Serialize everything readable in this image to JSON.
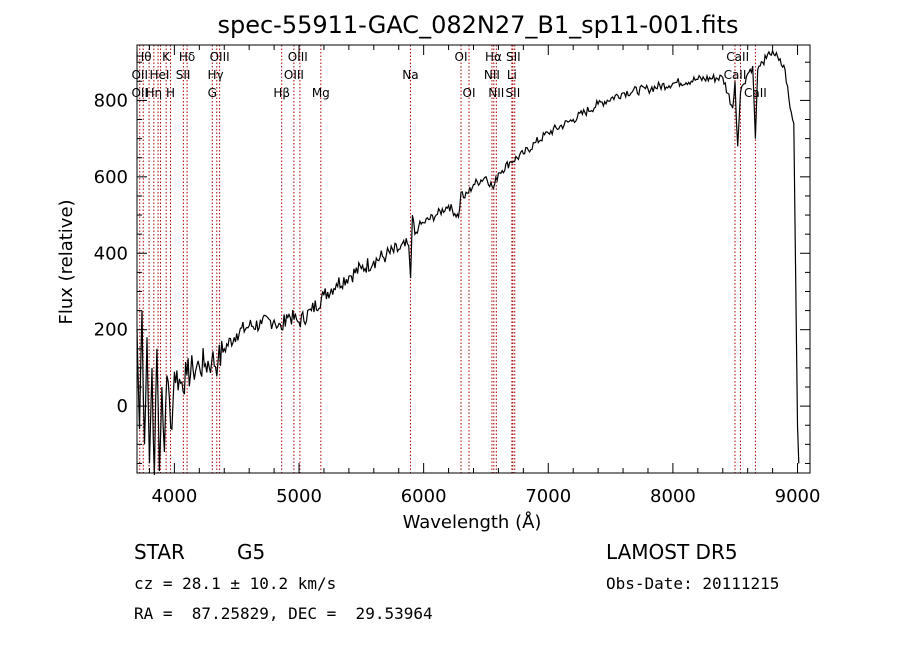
{
  "chart_data": {
    "type": "line",
    "title": "spec-55911-GAC_082N27_B1_sp11-001.fits",
    "xlabel": "Wavelength (Å)",
    "ylabel": "Flux (relative)",
    "xlim": [
      3700,
      9100
    ],
    "ylim": [
      -175,
      945
    ],
    "xticks": [
      4000,
      5000,
      6000,
      7000,
      8000,
      9000
    ],
    "yticks": [
      0,
      200,
      400,
      600,
      800
    ],
    "grid": false,
    "line_color": "#000000",
    "marker_color": "#aa0000",
    "series": [
      {
        "x": [
          3700,
          3720,
          3740,
          3760,
          3780,
          3800,
          3820,
          3840,
          3860,
          3880,
          3900,
          3920,
          3940,
          3960,
          3980,
          4000,
          4050,
          4100,
          4150,
          4200,
          4250,
          4300,
          4350,
          4400,
          4500,
          4600,
          4700,
          4800,
          4860,
          4900,
          5000,
          5100,
          5200,
          5300,
          5400,
          5500,
          5600,
          5700,
          5800,
          5880,
          5895,
          5910,
          5930,
          5960,
          6000,
          6100,
          6200,
          6280,
          6300,
          6330,
          6400,
          6500,
          6560,
          6600,
          6700,
          6800,
          6900,
          7000,
          7200,
          7400,
          7600,
          7800,
          8000,
          8200,
          8400,
          8480,
          8498,
          8520,
          8542,
          8560,
          8600,
          8640,
          8662,
          8680,
          8700,
          8720,
          8750,
          8780,
          8800,
          8850,
          8900,
          8940,
          8970,
          9000,
          9010
        ],
        "y": [
          200,
          -60,
          250,
          -100,
          180,
          -150,
          100,
          -180,
          150,
          -170,
          50,
          -120,
          80,
          20,
          -60,
          90,
          60,
          80,
          95,
          105,
          110,
          120,
          115,
          150,
          190,
          210,
          215,
          225,
          200,
          240,
          220,
          250,
          290,
          320,
          340,
          360,
          380,
          395,
          410,
          420,
          335,
          500,
          450,
          470,
          480,
          500,
          525,
          495,
          560,
          545,
          580,
          600,
          570,
          610,
          640,
          660,
          690,
          715,
          750,
          790,
          820,
          830,
          845,
          855,
          860,
          780,
          850,
          680,
          820,
          840,
          870,
          890,
          700,
          880,
          890,
          900,
          910,
          920,
          930,
          905,
          880,
          780,
          740,
          -50,
          -150
        ]
      }
    ],
    "lines": [
      {
        "wavelength": 3722,
        "labels": [
          "OII"
        ]
      },
      {
        "wavelength": 3750,
        "labels": [
          "Hθ"
        ]
      },
      {
        "wavelength": 3797,
        "labels": [
          "Hθ"
        ]
      },
      {
        "wavelength": 3835,
        "labels": [
          "Hη"
        ]
      },
      {
        "wavelength": 3869,
        "labels": [
          "HeI"
        ]
      },
      {
        "wavelength": 3889,
        "labels": [
          "HeI"
        ]
      },
      {
        "wavelength": 3934,
        "labels": [
          "K"
        ]
      },
      {
        "wavelength": 3969,
        "labels": [
          "H"
        ]
      },
      {
        "wavelength": 4072,
        "labels": [
          "SII"
        ]
      },
      {
        "wavelength": 4102,
        "labels": [
          "Hδ"
        ]
      },
      {
        "wavelength": 4304,
        "labels": [
          "G"
        ]
      },
      {
        "wavelength": 4340,
        "labels": [
          "Hγ"
        ]
      },
      {
        "wavelength": 4363,
        "labels": [
          "OIII"
        ]
      },
      {
        "wavelength": 4861,
        "labels": [
          "Hβ"
        ]
      },
      {
        "wavelength": 4959,
        "labels": [
          "OIII"
        ]
      },
      {
        "wavelength": 5007,
        "labels": [
          "OIII"
        ]
      },
      {
        "wavelength": 5175,
        "labels": [
          "Mg"
        ]
      },
      {
        "wavelength": 5894,
        "labels": [
          "Na"
        ]
      },
      {
        "wavelength": 6300,
        "labels": [
          "OI"
        ]
      },
      {
        "wavelength": 6364,
        "labels": [
          "OI"
        ]
      },
      {
        "wavelength": 6548,
        "labels": [
          "NII"
        ]
      },
      {
        "wavelength": 6563,
        "labels": [
          "Hα"
        ]
      },
      {
        "wavelength": 6583,
        "labels": [
          "NII"
        ]
      },
      {
        "wavelength": 6708,
        "labels": [
          "Li"
        ]
      },
      {
        "wavelength": 6716,
        "labels": [
          "SII"
        ]
      },
      {
        "wavelength": 6731,
        "labels": [
          "SII"
        ]
      },
      {
        "wavelength": 8498,
        "labels": [
          "CaII"
        ]
      },
      {
        "wavelength": 8542,
        "labels": [
          "CaII"
        ]
      },
      {
        "wavelength": 8662,
        "labels": [
          "CaII"
        ]
      }
    ],
    "line_labels": [
      {
        "text": "Hθ",
        "wl": 3752,
        "row": 0
      },
      {
        "text": "K",
        "wl": 3933,
        "row": 0
      },
      {
        "text": "Hδ",
        "wl": 4102,
        "row": 0
      },
      {
        "text": "OIII",
        "wl": 4363,
        "row": 0
      },
      {
        "text": "OIII",
        "wl": 4990,
        "row": 0
      },
      {
        "text": "OI",
        "wl": 6300,
        "row": 0
      },
      {
        "text": "Hα",
        "wl": 6560,
        "row": 0
      },
      {
        "text": "SII",
        "wl": 6720,
        "row": 0
      },
      {
        "text": "CaII",
        "wl": 8520,
        "row": 0
      },
      {
        "text": "OII",
        "wl": 3722,
        "row": 1
      },
      {
        "text": "HeI",
        "wl": 3880,
        "row": 1
      },
      {
        "text": "SII",
        "wl": 4070,
        "row": 1
      },
      {
        "text": "Hγ",
        "wl": 4330,
        "row": 1
      },
      {
        "text": "OIII",
        "wl": 4959,
        "row": 1
      },
      {
        "text": "Na",
        "wl": 5894,
        "row": 1
      },
      {
        "text": "NII",
        "wl": 6548,
        "row": 1
      },
      {
        "text": "Li",
        "wl": 6708,
        "row": 1
      },
      {
        "text": "CaII",
        "wl": 8498,
        "row": 1
      },
      {
        "text": "OII",
        "wl": 3722,
        "row": 2
      },
      {
        "text": "Hη",
        "wl": 3835,
        "row": 2
      },
      {
        "text": "H",
        "wl": 3969,
        "row": 2
      },
      {
        "text": "G",
        "wl": 4304,
        "row": 2
      },
      {
        "text": "Hβ",
        "wl": 4861,
        "row": 2
      },
      {
        "text": "Mg",
        "wl": 5175,
        "row": 2
      },
      {
        "text": "OI",
        "wl": 6364,
        "row": 2
      },
      {
        "text": "NII",
        "wl": 6583,
        "row": 2
      },
      {
        "text": "SII",
        "wl": 6716,
        "row": 2
      },
      {
        "text": "CaII",
        "wl": 8662,
        "row": 2
      }
    ]
  },
  "info": {
    "class_label": "STAR",
    "subclass_label": "G5",
    "survey": "LAMOST DR5",
    "cz": "cz = 28.1 ± 10.2 km/s",
    "obs_date": "Obs-Date: 20111215",
    "coords": "RA =  87.25829, DEC =  29.53964"
  }
}
